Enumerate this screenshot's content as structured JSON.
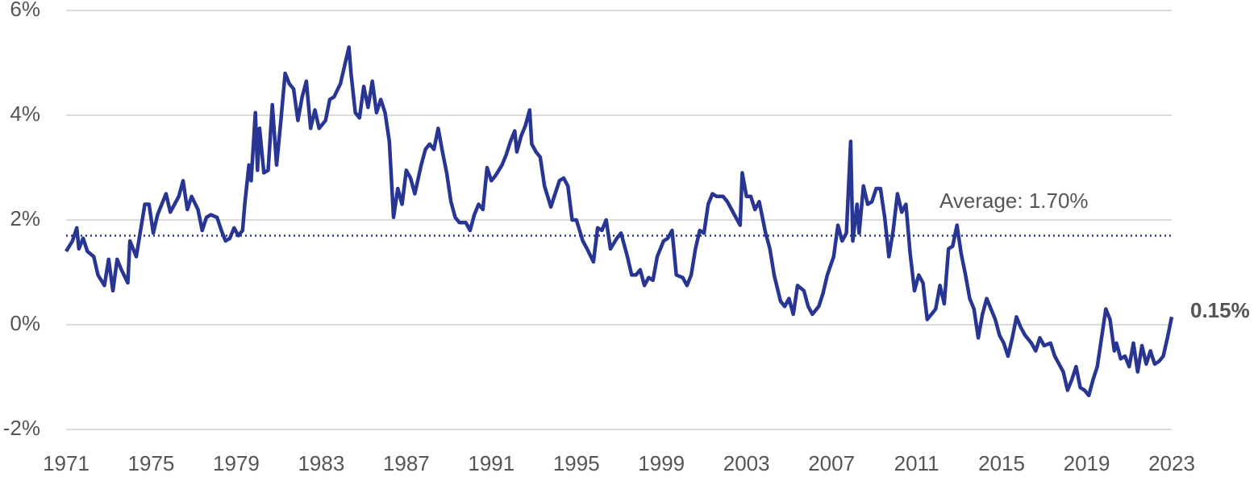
{
  "chart_data": {
    "type": "line",
    "x": [
      1971.0,
      1971.3,
      1971.5,
      1971.6,
      1971.8,
      1972.0,
      1972.3,
      1972.5,
      1972.8,
      1973.0,
      1973.2,
      1973.4,
      1973.6,
      1973.9,
      1974.0,
      1974.3,
      1974.5,
      1974.7,
      1974.9,
      1975.1,
      1975.3,
      1975.5,
      1975.7,
      1975.9,
      1976.1,
      1976.3,
      1976.5,
      1976.7,
      1976.9,
      1977.2,
      1977.4,
      1977.6,
      1977.8,
      1978.1,
      1978.3,
      1978.5,
      1978.7,
      1978.9,
      1979.1,
      1979.3,
      1979.4,
      1979.6,
      1979.7,
      1979.9,
      1980.0,
      1980.1,
      1980.3,
      1980.5,
      1980.7,
      1980.9,
      1981.1,
      1981.3,
      1981.5,
      1981.7,
      1981.9,
      1982.1,
      1982.3,
      1982.5,
      1982.7,
      1982.9,
      1983.2,
      1983.4,
      1983.6,
      1983.9,
      1984.1,
      1984.3,
      1984.4,
      1984.6,
      1984.8,
      1985.0,
      1985.2,
      1985.4,
      1985.6,
      1985.8,
      1986.0,
      1986.2,
      1986.4,
      1986.6,
      1986.8,
      1987.0,
      1987.2,
      1987.4,
      1987.7,
      1987.9,
      1988.1,
      1988.3,
      1988.5,
      1988.7,
      1988.9,
      1989.1,
      1989.3,
      1989.5,
      1989.8,
      1990.0,
      1990.2,
      1990.4,
      1990.6,
      1990.8,
      1991.0,
      1991.2,
      1991.5,
      1991.7,
      1991.9,
      1992.1,
      1992.2,
      1992.4,
      1992.6,
      1992.8,
      1992.9,
      1993.1,
      1993.3,
      1993.5,
      1993.8,
      1994.0,
      1994.2,
      1994.4,
      1994.6,
      1994.8,
      1995.0,
      1995.3,
      1995.5,
      1995.8,
      1996.0,
      1996.2,
      1996.4,
      1996.6,
      1996.9,
      1997.1,
      1997.4,
      1997.6,
      1997.8,
      1998.0,
      1998.2,
      1998.4,
      1998.6,
      1998.8,
      1999.1,
      1999.3,
      1999.5,
      1999.7,
      2000.0,
      2000.2,
      2000.4,
      2000.6,
      2000.8,
      2001.0,
      2001.2,
      2001.4,
      2001.6,
      2001.9,
      2002.1,
      2002.3,
      2002.5,
      2002.7,
      2002.8,
      2003.0,
      2003.2,
      2003.4,
      2003.6,
      2003.9,
      2004.1,
      2004.3,
      2004.6,
      2004.8,
      2005.0,
      2005.2,
      2005.4,
      2005.7,
      2005.9,
      2006.1,
      2006.4,
      2006.6,
      2006.8,
      2007.1,
      2007.3,
      2007.5,
      2007.7,
      2007.9,
      2008.0,
      2008.2,
      2008.3,
      2008.5,
      2008.7,
      2008.9,
      2009.1,
      2009.3,
      2009.5,
      2009.7,
      2009.9,
      2010.1,
      2010.3,
      2010.5,
      2010.7,
      2010.9,
      2011.1,
      2011.3,
      2011.5,
      2011.7,
      2011.9,
      2012.1,
      2012.3,
      2012.5,
      2012.7,
      2012.9,
      2013.1,
      2013.3,
      2013.5,
      2013.7,
      2013.9,
      2014.1,
      2014.3,
      2014.5,
      2014.7,
      2014.9,
      2015.1,
      2015.3,
      2015.5,
      2015.7,
      2015.9,
      2016.1,
      2016.4,
      2016.6,
      2016.8,
      2017.0,
      2017.3,
      2017.5,
      2017.7,
      2017.9,
      2018.1,
      2018.3,
      2018.5,
      2018.7,
      2018.9,
      2019.1,
      2019.3,
      2019.5,
      2019.7,
      2019.9,
      2020.1,
      2020.3,
      2020.4,
      2020.6,
      2020.8,
      2021.0,
      2021.2,
      2021.4,
      2021.6,
      2021.8,
      2022.0,
      2022.2,
      2022.4,
      2022.6,
      2022.8,
      2023.0
    ],
    "values": [
      1.4,
      1.6,
      1.85,
      1.45,
      1.65,
      1.4,
      1.3,
      0.95,
      0.75,
      1.25,
      0.65,
      1.25,
      1.05,
      0.8,
      1.6,
      1.3,
      1.8,
      2.3,
      2.3,
      1.75,
      2.1,
      2.3,
      2.5,
      2.15,
      2.3,
      2.45,
      2.75,
      2.2,
      2.45,
      2.2,
      1.8,
      2.05,
      2.1,
      2.05,
      1.8,
      1.6,
      1.65,
      1.85,
      1.7,
      1.8,
      2.3,
      3.05,
      2.75,
      4.05,
      2.95,
      3.75,
      2.9,
      2.95,
      4.2,
      3.05,
      3.9,
      4.8,
      4.6,
      4.5,
      3.9,
      4.35,
      4.65,
      3.75,
      4.1,
      3.75,
      3.9,
      4.3,
      4.35,
      4.6,
      4.95,
      5.3,
      4.8,
      4.05,
      3.95,
      4.55,
      4.15,
      4.65,
      4.05,
      4.3,
      4.05,
      3.5,
      2.05,
      2.6,
      2.3,
      2.95,
      2.8,
      2.5,
      3.05,
      3.35,
      3.45,
      3.35,
      3.75,
      3.3,
      2.9,
      2.35,
      2.05,
      1.95,
      1.95,
      1.8,
      2.1,
      2.3,
      2.2,
      3.0,
      2.75,
      2.85,
      3.05,
      3.25,
      3.5,
      3.7,
      3.3,
      3.6,
      3.8,
      4.1,
      3.45,
      3.3,
      3.2,
      2.65,
      2.25,
      2.5,
      2.75,
      2.8,
      2.65,
      2.0,
      2.0,
      1.6,
      1.45,
      1.2,
      1.85,
      1.8,
      2.0,
      1.45,
      1.65,
      1.75,
      1.3,
      0.95,
      0.95,
      1.05,
      0.75,
      0.9,
      0.85,
      1.3,
      1.6,
      1.65,
      1.8,
      0.95,
      0.9,
      0.75,
      0.95,
      1.45,
      1.8,
      1.75,
      2.3,
      2.5,
      2.45,
      2.45,
      2.35,
      2.2,
      2.05,
      1.9,
      2.9,
      2.45,
      2.45,
      2.2,
      2.35,
      1.75,
      1.45,
      0.95,
      0.45,
      0.35,
      0.5,
      0.2,
      0.75,
      0.65,
      0.35,
      0.2,
      0.35,
      0.6,
      0.95,
      1.3,
      1.9,
      1.6,
      1.75,
      3.5,
      1.6,
      2.3,
      1.75,
      2.65,
      2.3,
      2.35,
      2.6,
      2.6,
      2.05,
      1.3,
      1.8,
      2.5,
      2.15,
      2.3,
      1.35,
      0.65,
      0.95,
      0.8,
      0.1,
      0.2,
      0.3,
      0.75,
      0.4,
      1.45,
      1.5,
      1.9,
      1.35,
      0.95,
      0.5,
      0.3,
      -0.25,
      0.2,
      0.5,
      0.3,
      0.1,
      -0.2,
      -0.35,
      -0.6,
      -0.25,
      0.15,
      -0.05,
      -0.2,
      -0.35,
      -0.5,
      -0.25,
      -0.4,
      -0.35,
      -0.6,
      -0.75,
      -0.9,
      -1.25,
      -1.05,
      -0.8,
      -1.2,
      -1.25,
      -1.35,
      -1.05,
      -0.8,
      -0.25,
      0.3,
      0.1,
      -0.5,
      -0.35,
      -0.65,
      -0.6,
      -0.8,
      -0.35,
      -0.9,
      -0.4,
      -0.75,
      -0.5,
      -0.75,
      -0.7,
      -0.6,
      -0.25,
      0.15
    ],
    "color": "#283593",
    "end_label": "0.15%",
    "average": {
      "value": 1.7,
      "label": "Average: 1.70%"
    },
    "xlim": [
      1971,
      2023
    ],
    "xticks": [
      1971,
      1975,
      1979,
      1983,
      1987,
      1991,
      1995,
      1999,
      2003,
      2007,
      2011,
      2015,
      2019,
      2023
    ],
    "ylim": [
      -2,
      6
    ],
    "yticks": [
      {
        "value": -2,
        "label": "-2%"
      },
      {
        "value": 0,
        "label": "0%"
      },
      {
        "value": 2,
        "label": "2%"
      },
      {
        "value": 4,
        "label": "4%"
      },
      {
        "value": 6,
        "label": "6%"
      }
    ],
    "grid": true
  }
}
